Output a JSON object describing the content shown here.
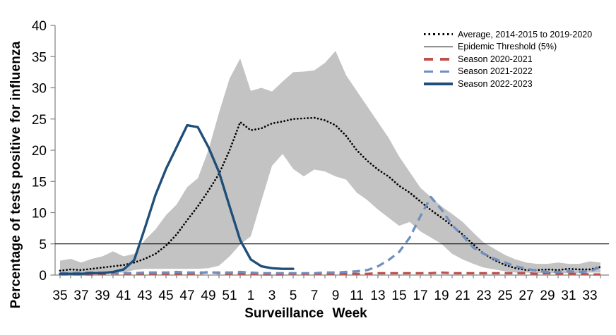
{
  "figure": {
    "background": "#ffffff"
  },
  "legend": {
    "items": [
      {
        "label": "Average, 2014-2015 to 2019-2020",
        "style": "dotted",
        "color": "#000000"
      },
      {
        "label": "Epidemic Threshold (5%)",
        "style": "thin",
        "color": "#000000"
      },
      {
        "label": "Season 2020-2021",
        "style": "dashed",
        "color": "#c0504d"
      },
      {
        "label": "Season 2021-2022",
        "style": "dashed",
        "color": "#6f8fbf"
      },
      {
        "label": "Season 2022-2023",
        "style": "solid",
        "color": "#1f4e79"
      }
    ]
  },
  "chart_data": {
    "type": "line",
    "xlabel": "Surveillance Week",
    "ylabel": "Percentage of tests positive for influenza",
    "ylim": [
      0,
      40
    ],
    "y_ticks": [
      0,
      5,
      10,
      15,
      20,
      25,
      30,
      35,
      40
    ],
    "x_tick_labels": [
      35,
      37,
      39,
      41,
      43,
      45,
      47,
      49,
      51,
      1,
      3,
      5,
      7,
      9,
      11,
      13,
      15,
      17,
      19,
      21,
      23,
      25,
      27,
      29,
      31,
      33
    ],
    "weeks": [
      35,
      36,
      37,
      38,
      39,
      40,
      41,
      42,
      43,
      44,
      45,
      46,
      47,
      48,
      49,
      50,
      51,
      52,
      1,
      2,
      3,
      4,
      5,
      6,
      7,
      8,
      9,
      10,
      11,
      12,
      13,
      14,
      15,
      16,
      17,
      18,
      19,
      20,
      21,
      22,
      23,
      24,
      25,
      26,
      27,
      28,
      29,
      30,
      31,
      32,
      33,
      34
    ],
    "grid": false,
    "legend_position": "top-right",
    "band": {
      "color": "#c3c3c3",
      "upper": [
        2.3,
        2.6,
        2.0,
        2.6,
        3.0,
        3.8,
        3.0,
        3.4,
        5.6,
        7.3,
        9.6,
        11.3,
        14.1,
        15.5,
        20.0,
        26.0,
        31.5,
        34.7,
        29.5,
        30.0,
        29.4,
        31.0,
        32.5,
        32.6,
        32.8,
        34.0,
        35.9,
        32.0,
        29.5,
        27.0,
        24.5,
        22.0,
        19.0,
        16.5,
        14.0,
        12.5,
        11.0,
        9.8,
        8.5,
        6.8,
        5.2,
        4.2,
        3.2,
        2.5,
        2.0,
        1.8,
        1.8,
        2.0,
        1.8,
        1.8,
        2.2,
        2.0
      ],
      "lower": [
        0.1,
        0.2,
        0.1,
        0.2,
        0.3,
        0.4,
        0.4,
        0.8,
        1.0,
        1.0,
        1.0,
        1.0,
        1.0,
        1.0,
        1.1,
        1.5,
        3.0,
        4.9,
        6.2,
        11.9,
        17.5,
        19.4,
        17.0,
        15.8,
        16.9,
        16.6,
        15.8,
        15.3,
        13.2,
        12.0,
        10.5,
        9.2,
        7.9,
        8.5,
        7.0,
        6.0,
        5.0,
        3.4,
        2.5,
        1.8,
        1.2,
        0.9,
        0.6,
        0.4,
        0.4,
        0.3,
        0.3,
        0.3,
        0.3,
        0.3,
        0.4,
        0.4
      ]
    },
    "threshold": {
      "label": "Epidemic Threshold (5%)",
      "value": 5,
      "color": "#000000"
    },
    "series": [
      {
        "id": "average",
        "name": "Average, 2014-2015 to 2019-2020",
        "style": "dotted",
        "color": "#000000",
        "values": [
          0.7,
          0.9,
          0.8,
          1.0,
          1.2,
          1.4,
          1.6,
          2.0,
          2.6,
          3.4,
          4.7,
          6.5,
          8.8,
          11.0,
          13.5,
          16.2,
          20.0,
          24.5,
          23.2,
          23.5,
          24.3,
          24.6,
          25.0,
          25.1,
          25.2,
          24.8,
          24.0,
          22.3,
          20.0,
          18.3,
          16.9,
          15.8,
          14.3,
          13.2,
          11.8,
          10.4,
          9.2,
          7.9,
          6.5,
          4.9,
          3.4,
          2.4,
          1.6,
          1.1,
          0.8,
          0.8,
          0.9,
          0.8,
          1.0,
          0.9,
          0.9,
          1.3
        ]
      },
      {
        "id": "season-2020-2021",
        "name": "Season 2020-2021",
        "style": "dashed",
        "color": "#c0504d",
        "values": [
          0.1,
          0.1,
          0.1,
          0.1,
          0.2,
          0.3,
          0.2,
          0.2,
          0.2,
          0.2,
          0.2,
          0.2,
          0.2,
          0.2,
          0.5,
          0.3,
          0.2,
          0.2,
          0.2,
          0.1,
          0.1,
          0.1,
          0.2,
          0.2,
          0.2,
          0.2,
          0.2,
          0.2,
          0.2,
          0.2,
          0.3,
          0.3,
          0.3,
          0.3,
          0.3,
          0.3,
          0.4,
          0.3,
          0.3,
          0.3,
          0.3,
          0.3,
          0.3,
          0.3,
          0.3,
          0.2,
          0.3,
          0.2,
          0.2,
          0.2,
          0.1,
          0.1
        ]
      },
      {
        "id": "season-2021-2022",
        "name": "Season 2021-2022",
        "style": "dashed",
        "color": "#6f8fbf",
        "values": [
          0.3,
          0.3,
          0.4,
          0.4,
          0.4,
          0.4,
          0.3,
          0.3,
          0.4,
          0.4,
          0.4,
          0.5,
          0.4,
          0.4,
          0.4,
          0.4,
          0.4,
          0.5,
          0.4,
          0.3,
          0.3,
          0.3,
          0.3,
          0.3,
          0.3,
          0.4,
          0.4,
          0.5,
          0.6,
          0.8,
          1.4,
          2.4,
          3.7,
          6.0,
          9.4,
          12.5,
          10.5,
          8.0,
          6.3,
          4.4,
          3.4,
          2.6,
          2.0,
          1.4,
          1.0,
          0.7,
          0.5,
          0.5,
          0.6,
          0.5,
          0.6,
          1.3
        ]
      },
      {
        "id": "season-2022-2023",
        "name": "Season 2022-2023",
        "style": "solid",
        "color": "#1f4e79",
        "values": [
          0.2,
          0.2,
          0.2,
          0.3,
          0.3,
          0.5,
          0.9,
          2.4,
          7.5,
          12.8,
          17.0,
          20.5,
          24.0,
          23.7,
          20.5,
          16.5,
          11.0,
          5.6,
          2.5,
          1.4,
          1.1,
          1.0,
          1.0,
          null,
          null,
          null,
          null,
          null,
          null,
          null,
          null,
          null,
          null,
          null,
          null,
          null,
          null,
          null,
          null,
          null,
          null,
          null,
          null,
          null,
          null,
          null,
          null,
          null,
          null,
          null,
          null,
          null
        ]
      }
    ]
  }
}
